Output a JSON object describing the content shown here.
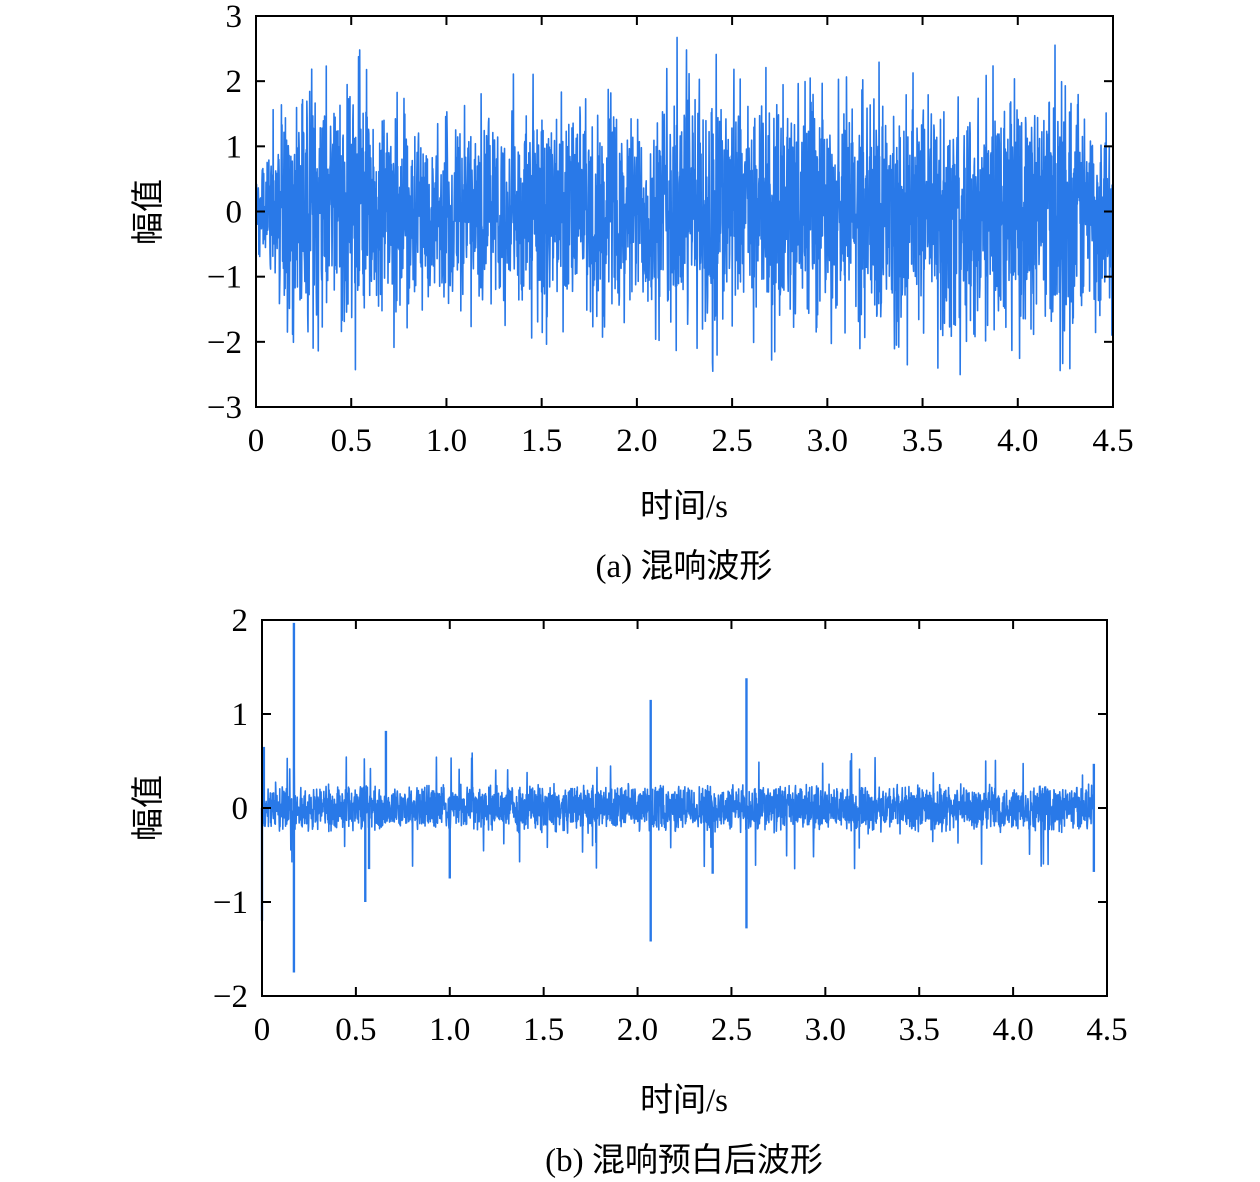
{
  "chart_data": [
    {
      "type": "line",
      "caption": "(a) 混响波形",
      "xlabel": "时间/s",
      "ylabel": "幅值",
      "xlim": [
        0,
        4.5
      ],
      "ylim": [
        -3,
        3
      ],
      "xticks": [
        0,
        0.5,
        1.0,
        1.5,
        2.0,
        2.5,
        3.0,
        3.5,
        4.0,
        4.5
      ],
      "xtick_labels": [
        "0",
        "0.5",
        "1.0",
        "1.5",
        "2.0",
        "2.5",
        "3.0",
        "3.5",
        "4.0",
        "4.5"
      ],
      "yticks": [
        -3,
        -2,
        -1,
        0,
        1,
        2,
        3
      ],
      "ytick_labels": [
        "−3",
        "−2",
        "−1",
        "0",
        "1",
        "2",
        "3"
      ],
      "grid": false,
      "series": [
        {
          "color": "#2979e8",
          "x_range": [
            0,
            4.5
          ],
          "envelope": {
            "t": [
              0,
              0.05,
              0.15,
              0.25,
              0.5,
              0.75,
              1.0,
              1.25,
              1.5,
              1.75,
              2.0,
              2.15,
              2.2,
              2.3,
              2.4,
              2.5,
              2.75,
              3.0,
              3.25,
              3.5,
              3.75,
              4.0,
              4.25,
              4.5
            ],
            "upper": [
              0.4,
              1.3,
              2.0,
              2.4,
              2.6,
              2.1,
              1.7,
              2.1,
              2.2,
              2.0,
              2.0,
              2.2,
              2.9,
              2.8,
              2.5,
              2.2,
              2.3,
              2.0,
              2.5,
              2.3,
              2.3,
              2.4,
              2.6,
              1.6
            ],
            "lower": [
              -0.4,
              -1.3,
              -2.0,
              -2.4,
              -2.6,
              -2.1,
              -1.7,
              -1.9,
              -2.1,
              -2.0,
              -2.0,
              -2.3,
              -3.0,
              -2.7,
              -2.5,
              -2.2,
              -2.3,
              -2.0,
              -2.4,
              -2.4,
              -2.8,
              -2.3,
              -2.6,
              -1.9
            ]
          }
        }
      ]
    },
    {
      "type": "line",
      "caption": "(b) 混响预白后波形",
      "xlabel": "时间/s",
      "ylabel": "幅值",
      "xlim": [
        0,
        4.5
      ],
      "ylim": [
        -2,
        2
      ],
      "xticks": [
        0,
        0.5,
        1.0,
        1.5,
        2.0,
        2.5,
        3.0,
        3.5,
        4.0,
        4.5
      ],
      "xtick_labels": [
        "0",
        "0.5",
        "1.0",
        "1.5",
        "2.0",
        "2.5",
        "3.0",
        "3.5",
        "4.0",
        "4.5"
      ],
      "yticks": [
        -2,
        -1,
        0,
        1,
        2
      ],
      "ytick_labels": [
        "−2",
        "−1",
        "0",
        "1",
        "2"
      ],
      "grid": false,
      "series": [
        {
          "color": "#2979e8",
          "x_range": [
            0,
            4.43
          ],
          "base_amplitude": 0.28,
          "spikes": [
            {
              "t": 0.0,
              "v": -1.2
            },
            {
              "t": 0.01,
              "v": 0.65
            },
            {
              "t": 0.17,
              "v": 1.97
            },
            {
              "t": 0.17,
              "v": -1.75
            },
            {
              "t": 0.55,
              "v": -1.0
            },
            {
              "t": 0.57,
              "v": -0.65
            },
            {
              "t": 0.66,
              "v": 0.82
            },
            {
              "t": 1.0,
              "v": -0.75
            },
            {
              "t": 2.07,
              "v": 1.15
            },
            {
              "t": 2.07,
              "v": -1.42
            },
            {
              "t": 2.4,
              "v": -0.7
            },
            {
              "t": 2.58,
              "v": 1.38
            },
            {
              "t": 2.58,
              "v": -1.28
            },
            {
              "t": 4.43,
              "v": 0.47
            },
            {
              "t": 4.43,
              "v": -0.68
            }
          ]
        }
      ]
    }
  ]
}
